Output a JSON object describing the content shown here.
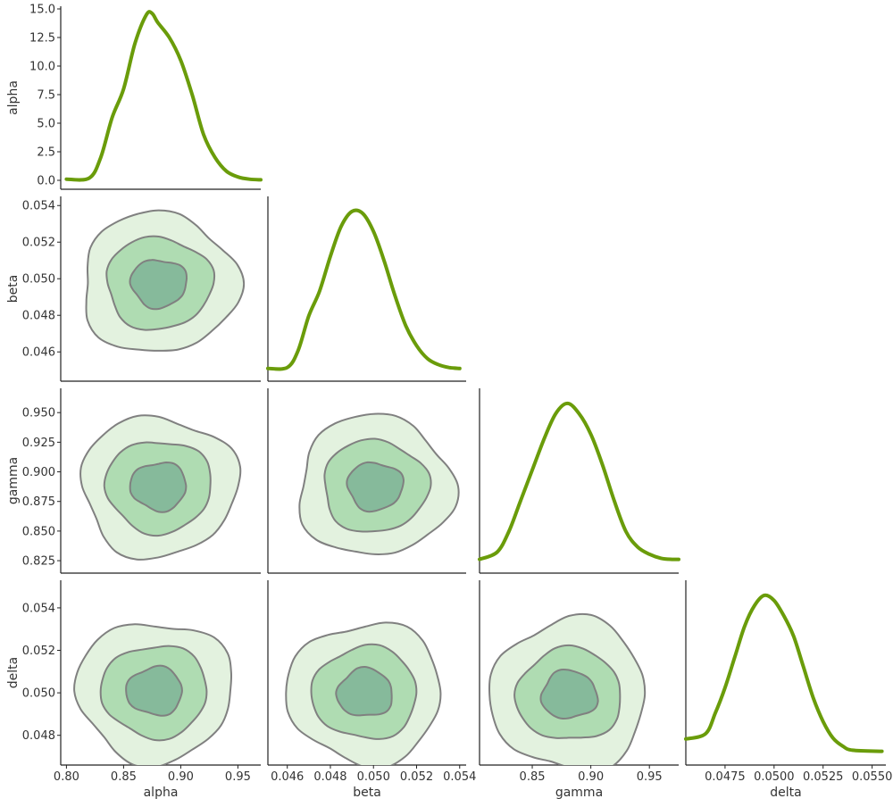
{
  "colors": {
    "kde_line": "#6a9c0a",
    "fill_outer": "#e3f2df",
    "fill_mid": "#afdcb2",
    "fill_inner": "#86ba9b",
    "contour_line": "#808080",
    "axis": "#222222",
    "text": "#333333"
  },
  "chart_data": {
    "type": "corner",
    "variables": [
      "alpha",
      "beta",
      "gamma",
      "delta"
    ],
    "marginals": [
      {
        "name": "alpha",
        "type": "line",
        "x": [
          0.8,
          0.82,
          0.83,
          0.84,
          0.85,
          0.86,
          0.87,
          0.875,
          0.88,
          0.89,
          0.9,
          0.91,
          0.92,
          0.93,
          0.94,
          0.95,
          0.96,
          0.97
        ],
        "y": [
          0.1,
          0.2,
          2.0,
          5.5,
          8.0,
          12.0,
          14.5,
          14.6,
          13.8,
          12.5,
          10.5,
          7.5,
          4.0,
          2.0,
          0.8,
          0.3,
          0.1,
          0.05
        ],
        "yticks": [
          "0.0",
          "2.5",
          "5.0",
          "7.5",
          "10.0",
          "12.5",
          "15.0"
        ],
        "ylim": [
          0,
          15
        ]
      },
      {
        "name": "beta",
        "type": "line",
        "x": [
          0.045,
          0.046,
          0.0465,
          0.047,
          0.0475,
          0.048,
          0.0485,
          0.049,
          0.0495,
          0.05,
          0.0505,
          0.051,
          0.0515,
          0.052,
          0.0525,
          0.053,
          0.0535,
          0.054
        ],
        "y": [
          0.2,
          0.3,
          2.0,
          5.5,
          8.0,
          11.5,
          14.5,
          16.0,
          15.8,
          14.0,
          11.0,
          7.5,
          4.5,
          2.5,
          1.2,
          0.6,
          0.3,
          0.2
        ]
      },
      {
        "name": "gamma",
        "type": "line",
        "x": [
          0.805,
          0.82,
          0.83,
          0.84,
          0.85,
          0.86,
          0.87,
          0.88,
          0.89,
          0.9,
          0.91,
          0.92,
          0.93,
          0.94,
          0.95,
          0.96,
          0.97,
          0.975
        ],
        "y": [
          0.3,
          1.0,
          3.0,
          6.0,
          9.0,
          12.0,
          14.5,
          15.5,
          14.5,
          12.5,
          9.5,
          6.0,
          3.0,
          1.5,
          0.8,
          0.4,
          0.3,
          0.3
        ]
      },
      {
        "name": "delta",
        "type": "line",
        "x": [
          0.0455,
          0.0465,
          0.047,
          0.0475,
          0.048,
          0.0485,
          0.049,
          0.0495,
          0.05,
          0.0505,
          0.051,
          0.0515,
          0.052,
          0.0525,
          0.053,
          0.0535,
          0.054,
          0.0555
        ],
        "y": [
          1.5,
          2.0,
          4.0,
          6.5,
          9.5,
          12.5,
          14.5,
          15.5,
          15.0,
          13.5,
          11.5,
          8.5,
          5.5,
          3.2,
          1.6,
          0.8,
          0.4,
          0.3
        ]
      }
    ],
    "contour_levels": [
      "outer",
      "middle",
      "inner"
    ],
    "xaxes": [
      {
        "label": "alpha",
        "range": [
          0.795,
          0.97
        ],
        "ticks": [
          "0.80",
          "0.85",
          "0.90",
          "0.95"
        ]
      },
      {
        "label": "beta",
        "range": [
          0.0451,
          0.0543
        ],
        "ticks": [
          "0.046",
          "0.048",
          "0.050",
          "0.052",
          "0.054"
        ]
      },
      {
        "label": "gamma",
        "range": [
          0.805,
          0.975
        ],
        "ticks": [
          "0.85",
          "0.90",
          "0.95"
        ]
      },
      {
        "label": "delta",
        "range": [
          0.0455,
          0.0557
        ],
        "ticks": [
          "0.0475",
          "0.0500",
          "0.0525",
          "0.0550"
        ]
      }
    ],
    "yaxes": [
      {
        "label": "alpha"
      },
      {
        "label": "beta",
        "range": [
          0.0444,
          0.0545
        ],
        "ticks": [
          "0.046",
          "0.048",
          "0.050",
          "0.052",
          "0.054"
        ]
      },
      {
        "label": "gamma",
        "range": [
          0.8145,
          0.9705
        ],
        "ticks": [
          "0.825",
          "0.850",
          "0.875",
          "0.900",
          "0.925",
          "0.950"
        ]
      },
      {
        "label": "delta",
        "range": [
          0.0466,
          0.0553
        ],
        "ticks": [
          "0.048",
          "0.050",
          "0.052",
          "0.054"
        ]
      }
    ],
    "grid": false,
    "legend": "none"
  }
}
